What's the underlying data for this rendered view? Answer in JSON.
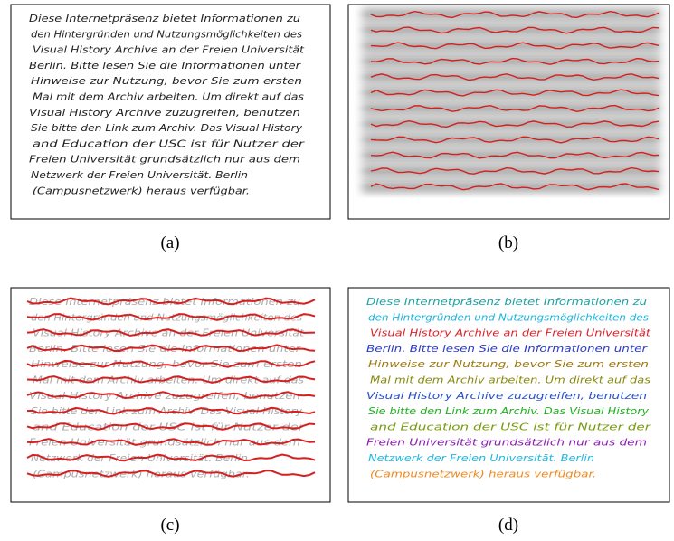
{
  "text_lines": [
    "Diese Internetpräsenz bietet Informationen zu",
    "den Hintergründen und Nutzungsmöglichkeiten des",
    "Visual History Archive an der Freien Universität",
    "Berlin. Bitte lesen Sie die Informationen unter",
    "Hinweise zur Nutzung, bevor Sie zum ersten",
    "Mal mit dem Archiv arbeiten. Um direkt auf das",
    "Visual History Archive zuzugreifen, benutzen",
    "Sie bitte den Link zum Archiv. Das Visual History",
    "and Education der USC ist für Nutzer der",
    "Freien Universität grundsätzlich nur aus dem",
    "Netzwerk der Freien Universität. Berlin",
    "(Campusnetzwerk) heraus verfügbar."
  ],
  "line_colors": [
    "#1aa3a3",
    "#19b4e0",
    "#e0202a",
    "#2a3ad0",
    "#a07a10",
    "#8a8a10",
    "#2a50d0",
    "#20b020",
    "#7a9a10",
    "#8a20b0",
    "#20b8e0",
    "#f08a20"
  ],
  "captions": [
    "(a)",
    "(b)",
    "(c)",
    "(d)"
  ]
}
